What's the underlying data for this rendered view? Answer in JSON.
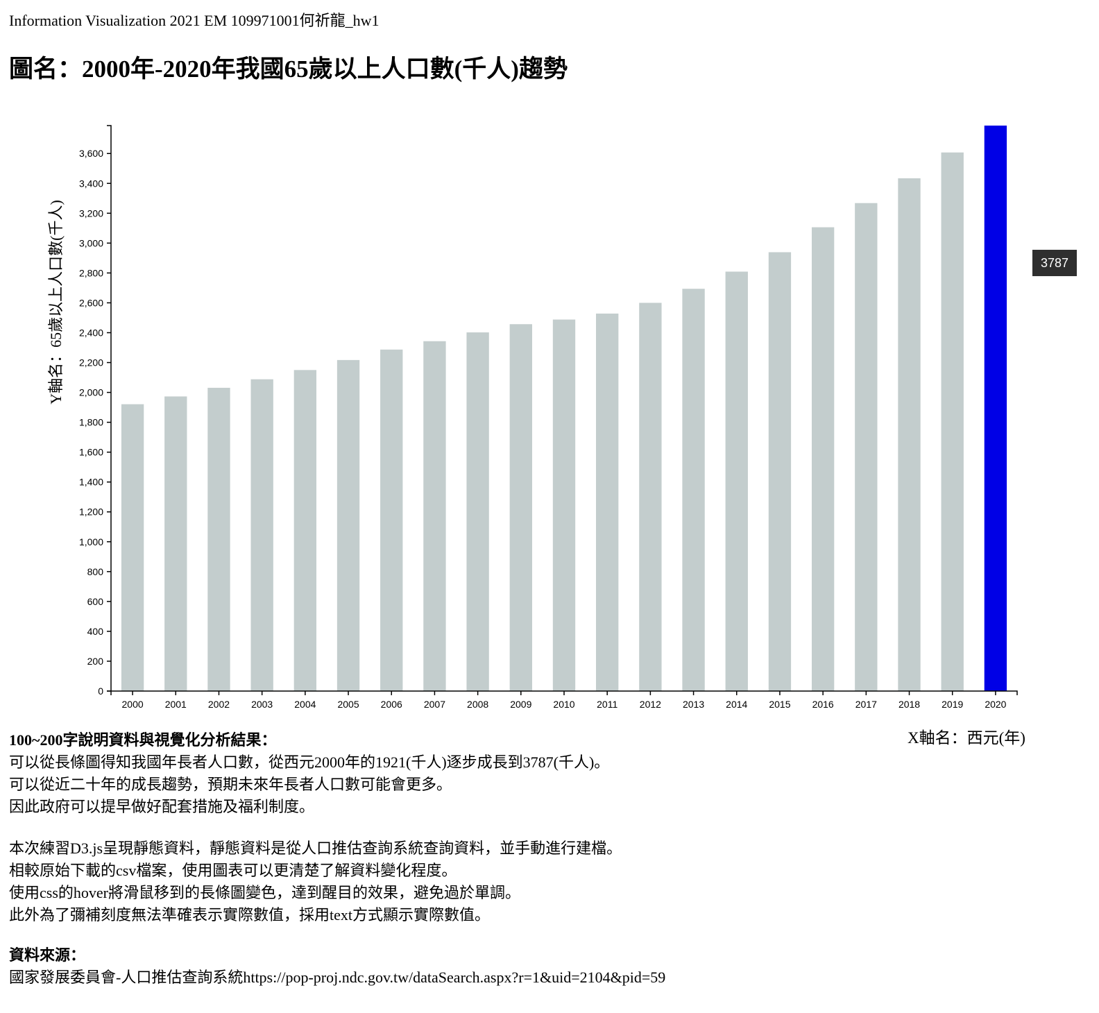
{
  "header": {
    "text": "Information Visualization 2021 EM 109971001何祈龍_hw1"
  },
  "chart_title": "圖名：2000年-2020年我國65歲以上人口數(千人)趨勢",
  "tooltip": {
    "value": "3787"
  },
  "chart_data": {
    "type": "bar",
    "categories": [
      "2000",
      "2001",
      "2002",
      "2003",
      "2004",
      "2005",
      "2006",
      "2007",
      "2008",
      "2009",
      "2010",
      "2011",
      "2012",
      "2013",
      "2014",
      "2015",
      "2016",
      "2017",
      "2018",
      "2019",
      "2020"
    ],
    "values": [
      1921,
      1973,
      2031,
      2088,
      2150,
      2217,
      2287,
      2343,
      2402,
      2457,
      2488,
      2528,
      2600,
      2694,
      2809,
      2939,
      3106,
      3268,
      3434,
      3607,
      3787
    ],
    "hovered_category": "2020",
    "title": "圖名：2000年-2020年我國65歲以上人口數(千人)趨勢",
    "xlabel": "X軸名：西元(年)",
    "ylabel": "Y軸名：65歲以上人口數(千人)",
    "ylim": [
      0,
      3787
    ],
    "yticks": [
      0,
      200,
      400,
      600,
      800,
      1000,
      1200,
      1400,
      1600,
      1800,
      2000,
      2200,
      2400,
      2600,
      2800,
      3000,
      3200,
      3400,
      3600
    ],
    "ytick_labels": [
      "0",
      "200",
      "400",
      "600",
      "800",
      "1,000",
      "1,200",
      "1,400",
      "1,600",
      "1,800",
      "2,000",
      "2,200",
      "2,400",
      "2,600",
      "2,800",
      "3,000",
      "3,200",
      "3,400",
      "3,600"
    ],
    "grid": false,
    "colors": {
      "bar": "#c3cdcd",
      "bar_hover": "#0000e6"
    }
  },
  "description": {
    "heading": "100~200字說明資料與視覺化分析結果：",
    "lines": [
      "可以從長條圖得知我國年長者人口數，從西元2000年的1921(千人)逐步成長到3787(千人)。",
      "可以從近二十年的成長趨勢，預期未來年長者人口數可能會更多。",
      "因此政府可以提早做好配套措施及福利制度。"
    ]
  },
  "notes": {
    "lines": [
      "本次練習D3.js呈現靜態資料，靜態資料是從人口推估查詢系統查詢資料，並手動進行建檔。",
      "相較原始下載的csv檔案，使用圖表可以更清楚了解資料變化程度。",
      "使用css的hover將滑鼠移到的長條圖變色，達到醒目的效果，避免過於單調。",
      "此外為了彌補刻度無法準確表示實際數值，採用text方式顯示實際數值。"
    ]
  },
  "source": {
    "heading": "資料來源：",
    "text": "國家發展委員會-人口推估查詢系統https://pop-proj.ndc.gov.tw/dataSearch.aspx?r=1&uid=2104&pid=59"
  }
}
